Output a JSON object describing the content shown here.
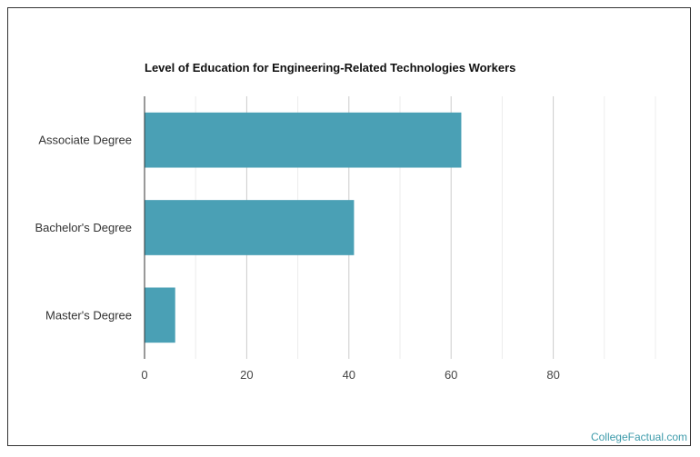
{
  "chart_data": {
    "type": "bar",
    "orientation": "horizontal",
    "title": "Level of Education for Engineering-Related Technologies Workers",
    "categories": [
      "Associate Degree",
      "Bachelor's Degree",
      "Master's Degree"
    ],
    "values": [
      62,
      41,
      6
    ],
    "x_ticks": [
      0,
      20,
      40,
      60,
      80
    ],
    "xlim": [
      0,
      100
    ],
    "xlabel": "",
    "ylabel": "",
    "grid": true,
    "bar_color": "#4aa0b5",
    "legend": "none"
  },
  "footer": {
    "source": "CollegeFactual.com"
  },
  "colors": {
    "watermark": "#3e9bab",
    "gridline": "#dddddd",
    "axis": "#333333"
  }
}
